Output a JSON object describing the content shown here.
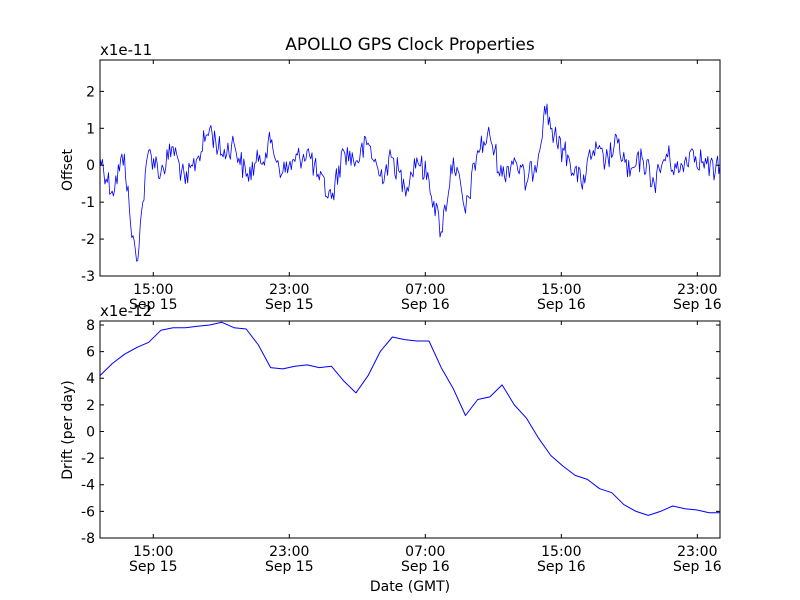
{
  "figure": {
    "title": "APOLLO GPS Clock Properties",
    "xlabel": "Date (GMT)"
  },
  "chart_data": [
    {
      "type": "line",
      "title": "APOLLO GPS Clock Properties",
      "xlabel": "",
      "ylabel": "Offset",
      "scale_label": "x1e-11",
      "xlim": [
        "2011-09-15 11:52",
        "2011-09-17 00:20"
      ],
      "ylim": [
        -3,
        2.85
      ],
      "y_ticks": [
        -3,
        -2,
        -1,
        0,
        1,
        2
      ],
      "x_ticks": [
        {
          "time": "2011-09-15 15:00",
          "label": "15:00",
          "date": "Sep 15"
        },
        {
          "time": "2011-09-15 23:00",
          "label": "23:00",
          "date": "Sep 15"
        },
        {
          "time": "2011-09-16 07:00",
          "label": "07:00",
          "date": "Sep 16"
        },
        {
          "time": "2011-09-16 15:00",
          "label": "15:00",
          "date": "Sep 16"
        },
        {
          "time": "2011-09-16 23:00",
          "label": "23:00",
          "date": "Sep 16"
        }
      ],
      "grid": false,
      "color": "#0000ff",
      "series": [
        {
          "x": [
            "2011-09-15 11:52",
            "2011-09-15 12:35",
            "2011-09-15 13:18",
            "2011-09-15 13:40",
            "2011-09-15 14:01",
            "2011-09-15 14:23",
            "2011-09-15 14:44",
            "2011-09-15 15:27",
            "2011-09-15 16:10",
            "2011-09-15 16:53",
            "2011-09-15 17:36",
            "2011-09-15 18:19",
            "2011-09-15 19:02",
            "2011-09-15 19:45",
            "2011-09-15 20:28",
            "2011-09-15 21:11",
            "2011-09-15 21:54",
            "2011-09-15 22:37",
            "2011-09-15 23:20",
            "2011-09-16 00:03",
            "2011-09-16 00:46",
            "2011-09-16 01:29",
            "2011-09-16 02:12",
            "2011-09-16 02:55",
            "2011-09-16 03:38",
            "2011-09-16 04:21",
            "2011-09-16 05:04",
            "2011-09-16 05:47",
            "2011-09-16 06:30",
            "2011-09-16 07:13",
            "2011-09-16 07:56",
            "2011-09-16 08:39",
            "2011-09-16 09:22",
            "2011-09-16 10:05",
            "2011-09-16 10:48",
            "2011-09-16 11:31",
            "2011-09-16 12:14",
            "2011-09-16 12:57",
            "2011-09-16 13:40",
            "2011-09-16 14:01",
            "2011-09-16 14:44",
            "2011-09-16 15:27",
            "2011-09-16 16:10",
            "2011-09-16 16:53",
            "2011-09-16 17:36",
            "2011-09-16 18:19",
            "2011-09-16 19:02",
            "2011-09-16 19:45",
            "2011-09-16 20:28",
            "2011-09-16 21:11",
            "2011-09-16 21:54",
            "2011-09-16 22:37",
            "2011-09-16 23:20",
            "2011-09-17 00:03",
            "2011-09-17 00:20"
          ],
          "y": [
            0.2,
            -0.7,
            0.3,
            -1.6,
            -2.6,
            -1.0,
            0.4,
            -0.2,
            0.5,
            -0.5,
            0.2,
            1.0,
            0.3,
            0.6,
            -0.3,
            0.1,
            0.6,
            -0.2,
            0.1,
            0.4,
            -0.4,
            -0.9,
            0.4,
            0.1,
            0.6,
            -0.3,
            0.2,
            -0.6,
            0.2,
            -0.4,
            -1.8,
            0.2,
            -1.3,
            0.4,
            0.8,
            -0.3,
            0.2,
            -0.5,
            0.3,
            1.6,
            0.6,
            0.2,
            -0.5,
            0.4,
            0.1,
            0.6,
            -0.3,
            0.2,
            -0.5,
            0.3,
            -0.2,
            0.4,
            0.1,
            -0.2,
            0.0
          ]
        }
      ]
    },
    {
      "type": "line",
      "title": "",
      "xlabel": "Date (GMT)",
      "ylabel": "Drift (per day)",
      "scale_label": "x1e-12",
      "xlim": [
        "2011-09-15 11:52",
        "2011-09-17 00:20"
      ],
      "ylim": [
        -8,
        8.3
      ],
      "y_ticks": [
        -8,
        -6,
        -4,
        -2,
        0,
        2,
        4,
        6,
        8
      ],
      "x_ticks": [
        {
          "time": "2011-09-15 15:00",
          "label": "15:00",
          "date": "Sep 15"
        },
        {
          "time": "2011-09-15 23:00",
          "label": "23:00",
          "date": "Sep 15"
        },
        {
          "time": "2011-09-16 07:00",
          "label": "07:00",
          "date": "Sep 16"
        },
        {
          "time": "2011-09-16 15:00",
          "label": "15:00",
          "date": "Sep 16"
        },
        {
          "time": "2011-09-16 23:00",
          "label": "23:00",
          "date": "Sep 16"
        }
      ],
      "grid": false,
      "color": "#0000ff",
      "series": [
        {
          "x": [
            "2011-09-15 11:52",
            "2011-09-15 12:35",
            "2011-09-15 13:18",
            "2011-09-15 14:01",
            "2011-09-15 14:44",
            "2011-09-15 15:27",
            "2011-09-15 16:10",
            "2011-09-15 16:53",
            "2011-09-15 17:36",
            "2011-09-15 18:19",
            "2011-09-15 19:02",
            "2011-09-15 19:45",
            "2011-09-15 20:28",
            "2011-09-15 21:11",
            "2011-09-15 21:54",
            "2011-09-15 22:37",
            "2011-09-15 23:20",
            "2011-09-16 00:03",
            "2011-09-16 00:46",
            "2011-09-16 01:29",
            "2011-09-16 02:12",
            "2011-09-16 02:55",
            "2011-09-16 03:38",
            "2011-09-16 04:21",
            "2011-09-16 05:04",
            "2011-09-16 05:47",
            "2011-09-16 06:30",
            "2011-09-16 07:13",
            "2011-09-16 07:56",
            "2011-09-16 08:39",
            "2011-09-16 09:22",
            "2011-09-16 10:05",
            "2011-09-16 10:48",
            "2011-09-16 11:31",
            "2011-09-16 12:14",
            "2011-09-16 12:57",
            "2011-09-16 13:40",
            "2011-09-16 14:23",
            "2011-09-16 15:06",
            "2011-09-16 15:49",
            "2011-09-16 16:32",
            "2011-09-16 17:15",
            "2011-09-16 17:58",
            "2011-09-16 18:41",
            "2011-09-16 19:24",
            "2011-09-16 20:07",
            "2011-09-16 20:50",
            "2011-09-16 21:33",
            "2011-09-16 22:16",
            "2011-09-16 22:59",
            "2011-09-16 23:42",
            "2011-09-17 00:20"
          ],
          "y": [
            4.2,
            5.1,
            5.8,
            6.3,
            6.7,
            7.6,
            7.8,
            7.8,
            7.9,
            8.0,
            8.2,
            7.8,
            7.7,
            6.5,
            4.8,
            4.7,
            4.9,
            5.0,
            4.8,
            4.9,
            3.8,
            2.9,
            4.2,
            6.0,
            7.1,
            6.9,
            6.8,
            6.8,
            4.8,
            3.2,
            1.2,
            2.4,
            2.6,
            3.5,
            2.0,
            1.0,
            -0.5,
            -1.8,
            -2.6,
            -3.3,
            -3.6,
            -4.3,
            -4.6,
            -5.5,
            -6.0,
            -6.3,
            -6.0,
            -5.6,
            -5.8,
            -5.9,
            -6.1,
            -6.1
          ]
        }
      ]
    }
  ]
}
